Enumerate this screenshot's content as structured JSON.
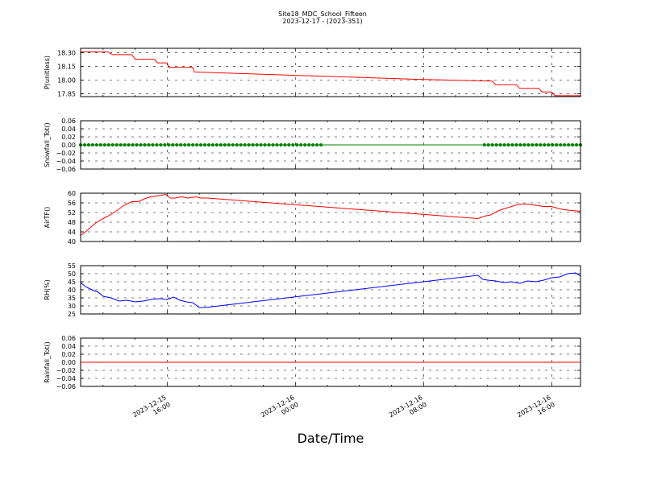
{
  "title": "Site18_MDC_School_Fifteen",
  "subtitle": "2023-12-17 - (2023-351)",
  "xlabel": "Date/Time",
  "x_ticks": [
    {
      "t": 16,
      "line1": "2023-12-15",
      "line2": "16:00"
    },
    {
      "t": 24,
      "line1": "2023-12-16",
      "line2": "00:00"
    },
    {
      "t": 32,
      "line1": "2023-12-16",
      "line2": "08:00"
    },
    {
      "t": 40,
      "line1": "2023-12-16",
      "line2": "16:00"
    }
  ],
  "chart_data": [
    {
      "type": "line",
      "ylabel": "P(unitless)",
      "color": "#ff0000",
      "markers": false,
      "ylim": [
        17.82,
        18.35
      ],
      "yticks": [
        "18.30",
        "18.15",
        "18.00",
        "17.85"
      ],
      "yticks_values": [
        18.3,
        18.15,
        18.0,
        17.85
      ],
      "x": [
        10.6,
        12.3,
        12.6,
        13.8,
        14.0,
        15.2,
        15.4,
        16.0,
        16.1,
        17.6,
        17.7,
        31.5,
        36.3,
        36.5,
        37.8,
        38.0,
        39.2,
        39.4,
        40.0,
        40.2,
        41.8
      ],
      "values": [
        18.31,
        18.31,
        18.28,
        18.28,
        18.23,
        18.23,
        18.19,
        18.19,
        18.14,
        18.14,
        18.09,
        18.01,
        17.99,
        17.95,
        17.95,
        17.91,
        17.91,
        17.87,
        17.87,
        17.83,
        17.83
      ]
    },
    {
      "type": "line",
      "ylabel": "Snowfall_Tot()",
      "color": "#008000",
      "markers": true,
      "ylim": [
        -0.06,
        0.06
      ],
      "yticks": [
        "0.06",
        "0.04",
        "0.02",
        "0.00",
        "−0.02",
        "−0.04",
        "−0.06"
      ],
      "yticks_values": [
        0.06,
        0.04,
        0.02,
        0.0,
        -0.02,
        -0.04,
        -0.06
      ],
      "x": [
        10.6,
        41.8
      ],
      "values": [
        0.0,
        0.0
      ],
      "marker_ranges": [
        [
          10.6,
          25.6
        ],
        [
          35.8,
          41.8
        ]
      ],
      "marker_step": 0.25
    },
    {
      "type": "line",
      "ylabel": "AirTF()",
      "color": "#ff0000",
      "markers": false,
      "ylim": [
        40,
        60
      ],
      "yticks": [
        "60",
        "56",
        "52",
        "48",
        "44",
        "40"
      ],
      "yticks_values": [
        60,
        56,
        52,
        48,
        44,
        40
      ],
      "x": [
        10.6,
        11.0,
        11.5,
        12.0,
        12.3,
        12.8,
        13.3,
        13.8,
        14.2,
        14.7,
        15.0,
        15.5,
        15.9,
        16.2,
        16.5,
        16.9,
        17.3,
        17.8,
        18.1,
        18.5,
        35.4,
        35.8,
        36.2,
        36.6,
        37.0,
        37.5,
        38.0,
        38.5,
        39.0,
        39.5,
        40.0,
        40.5,
        41.0,
        41.8
      ],
      "values": [
        42.5,
        44.5,
        47.5,
        49.5,
        50.5,
        52.5,
        55.0,
        56.5,
        56.5,
        58.0,
        58.5,
        59.0,
        59.5,
        58.0,
        58.0,
        58.5,
        58.0,
        58.5,
        58.0,
        58.0,
        49.5,
        50.5,
        51.0,
        52.5,
        53.5,
        54.5,
        55.5,
        55.5,
        55.0,
        54.5,
        54.5,
        53.5,
        53.0,
        52.5
      ]
    },
    {
      "type": "line",
      "ylabel": "RH(%)",
      "color": "#0000ff",
      "markers": false,
      "ylim": [
        25,
        55
      ],
      "yticks": [
        "55",
        "50",
        "45",
        "40",
        "35",
        "30",
        "25"
      ],
      "yticks_values": [
        55,
        50,
        45,
        40,
        35,
        30,
        25
      ],
      "x": [
        10.6,
        10.9,
        11.3,
        11.7,
        12.0,
        12.5,
        13.0,
        13.5,
        14.0,
        14.5,
        15.0,
        15.5,
        16.0,
        16.4,
        16.8,
        17.2,
        17.6,
        18.0,
        18.4,
        18.8,
        35.4,
        35.7,
        36.0,
        36.5,
        37.0,
        37.5,
        38.0,
        38.5,
        39.0,
        39.5,
        40.0,
        40.5,
        41.0,
        41.5,
        41.8
      ],
      "values": [
        44.5,
        42.0,
        40.0,
        38.5,
        36.0,
        35.0,
        33.0,
        33.5,
        32.5,
        33.0,
        34.0,
        34.5,
        34.0,
        35.5,
        33.5,
        32.5,
        32.0,
        29.0,
        29.0,
        29.5,
        49.0,
        46.5,
        46.0,
        45.5,
        44.5,
        45.0,
        44.0,
        45.5,
        45.0,
        46.0,
        47.5,
        48.0,
        50.0,
        50.5,
        48.5
      ]
    },
    {
      "type": "line",
      "ylabel": "Rainfall_Tot()",
      "color": "#ff0000",
      "markers": false,
      "ylim": [
        -0.06,
        0.06
      ],
      "yticks": [
        "0.06",
        "0.04",
        "0.02",
        "0.00",
        "−0.02",
        "−0.04",
        "−0.06"
      ],
      "yticks_values": [
        0.06,
        0.04,
        0.02,
        0.0,
        -0.02,
        -0.04,
        -0.06
      ],
      "x": [
        10.6,
        41.8
      ],
      "values": [
        0.0,
        0.0
      ]
    }
  ]
}
